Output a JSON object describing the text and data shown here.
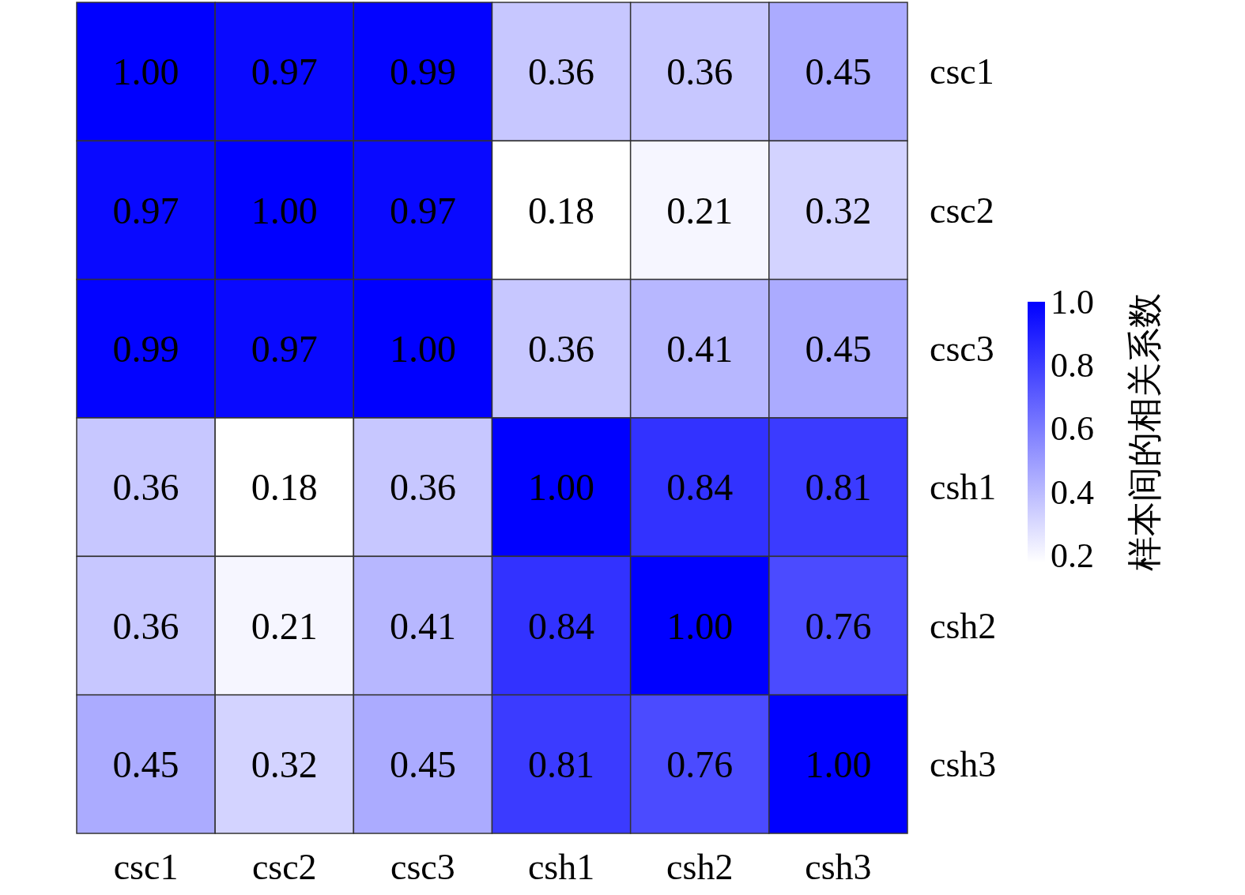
{
  "chart_data": {
    "type": "heatmap",
    "clabel": "样本间的相关系数",
    "categories": [
      "csc1",
      "csc2",
      "csc3",
      "csh1",
      "csh2",
      "csh3"
    ],
    "y_categories": [
      "csc1",
      "csc2",
      "csc3",
      "csh1",
      "csh2",
      "csh3"
    ],
    "cells": [
      [
        1.0,
        0.97,
        0.99,
        0.36,
        0.36,
        0.45
      ],
      [
        0.97,
        1.0,
        0.97,
        0.18,
        0.21,
        0.32
      ],
      [
        0.99,
        0.97,
        1.0,
        0.36,
        0.41,
        0.45
      ],
      [
        0.36,
        0.18,
        0.36,
        1.0,
        0.84,
        0.81
      ],
      [
        0.36,
        0.21,
        0.41,
        0.84,
        1.0,
        0.76
      ],
      [
        0.45,
        0.32,
        0.45,
        0.81,
        0.76,
        1.0
      ]
    ],
    "cell_labels": [
      [
        "1.00",
        "0.97",
        "0.99",
        "0.36",
        "0.36",
        "0.45"
      ],
      [
        "0.97",
        "1.00",
        "0.97",
        "0.18",
        "0.21",
        "0.32"
      ],
      [
        "0.99",
        "0.97",
        "1.00",
        "0.36",
        "0.41",
        "0.45"
      ],
      [
        "0.36",
        "0.18",
        "0.36",
        "1.00",
        "0.84",
        "0.81"
      ],
      [
        "0.36",
        "0.21",
        "0.41",
        "0.84",
        "1.00",
        "0.76"
      ],
      [
        "0.45",
        "0.32",
        "0.45",
        "0.81",
        "0.76",
        "1.00"
      ]
    ],
    "colors": [
      "#ffffff",
      "#0000ff"
    ],
    "clim": [
      0.18,
      1.0
    ],
    "cticks": [
      {
        "value": 0.2,
        "label": "0.2"
      },
      {
        "value": 0.4,
        "label": "0.4"
      },
      {
        "value": 0.6,
        "label": "0.6"
      },
      {
        "value": 0.8,
        "label": "0.8"
      },
      {
        "value": 1.0,
        "label": "1.0"
      }
    ]
  }
}
